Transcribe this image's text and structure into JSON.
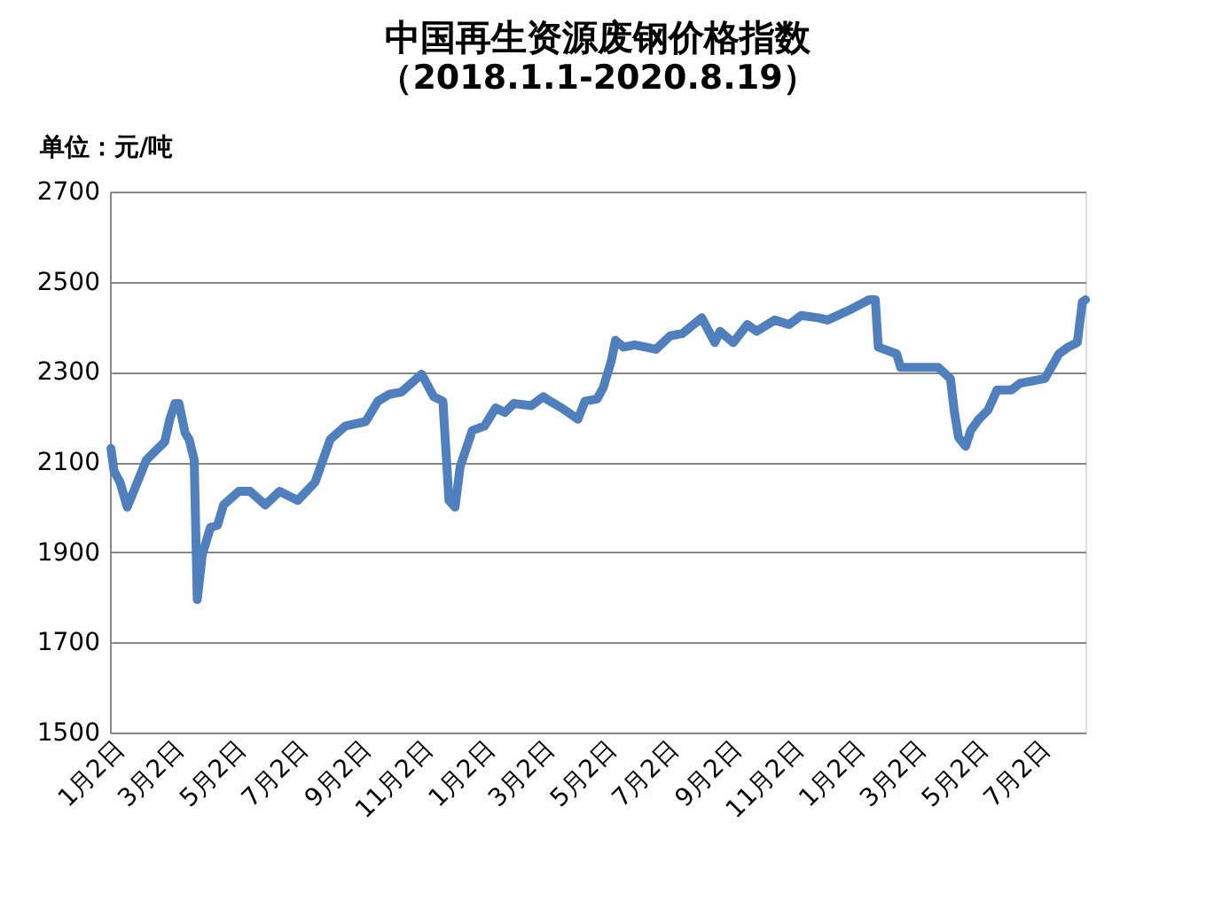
{
  "chart_data": {
    "type": "line",
    "title": "中国再生资源废钢价格指数",
    "subtitle": "（2018.1.1-2020.8.19）",
    "ylabel": "单位：元/吨",
    "x": [
      "2018-01-02",
      "2018-01-05",
      "2018-01-11",
      "2018-01-18",
      "2018-02-06",
      "2018-02-24",
      "2018-03-01",
      "2018-03-06",
      "2018-03-10",
      "2018-03-16",
      "2018-03-20",
      "2018-03-25",
      "2018-03-28",
      "2018-04-02",
      "2018-04-10",
      "2018-04-17",
      "2018-04-23",
      "2018-05-08",
      "2018-05-19",
      "2018-06-03",
      "2018-06-17",
      "2018-07-05",
      "2018-07-22",
      "2018-08-06",
      "2018-08-21",
      "2018-09-10",
      "2018-09-22",
      "2018-10-03",
      "2018-10-15",
      "2018-11-04",
      "2018-11-16",
      "2018-11-25",
      "2018-12-01",
      "2018-12-07",
      "2018-12-12",
      "2018-12-24",
      "2019-01-05",
      "2019-01-16",
      "2019-01-25",
      "2019-02-03",
      "2019-02-20",
      "2019-03-04",
      "2019-03-07",
      "2019-03-22",
      "2019-04-07",
      "2019-04-14",
      "2019-04-26",
      "2019-05-02",
      "2019-05-10",
      "2019-05-14",
      "2019-05-22",
      "2019-06-02",
      "2019-06-23",
      "2019-07-07",
      "2019-07-19",
      "2019-08-07",
      "2019-08-20",
      "2019-08-25",
      "2019-09-07",
      "2019-09-21",
      "2019-09-30",
      "2019-10-18",
      "2019-11-01",
      "2019-11-13",
      "2019-11-30",
      "2019-12-09",
      "2020-01-02",
      "2020-01-19",
      "2020-01-25",
      "2020-01-28",
      "2020-02-15",
      "2020-02-19",
      "2020-03-27",
      "2020-04-08",
      "2020-04-12",
      "2020-04-16",
      "2020-04-23",
      "2020-04-28",
      "2020-05-06",
      "2020-05-15",
      "2020-05-24",
      "2020-06-07",
      "2020-06-16",
      "2020-07-10",
      "2020-07-24",
      "2020-08-02",
      "2020-08-11",
      "2020-08-16",
      "2020-08-19"
    ],
    "series": [
      {
        "color": "#4f7fbd",
        "values": [
          2130,
          2080,
          2055,
          2000,
          2105,
          2145,
          2195,
          2230,
          2230,
          2165,
          2150,
          2105,
          1795,
          1895,
          1955,
          1960,
          2005,
          2035,
          2035,
          2005,
          2035,
          2015,
          2055,
          2150,
          2180,
          2190,
          2235,
          2250,
          2255,
          2295,
          2245,
          2235,
          2015,
          2000,
          2090,
          2170,
          2180,
          2220,
          2210,
          2230,
          2225,
          2245,
          2240,
          2220,
          2195,
          2235,
          2240,
          2265,
          2325,
          2370,
          2355,
          2360,
          2350,
          2380,
          2385,
          2420,
          2365,
          2390,
          2365,
          2405,
          2390,
          2415,
          2405,
          2425,
          2420,
          2415,
          2440,
          2460,
          2460,
          2355,
          2340,
          2310,
          2310,
          2285,
          2210,
          2155,
          2135,
          2170,
          2195,
          2215,
          2260,
          2260,
          2275,
          2285,
          2340,
          2355,
          2365,
          2455,
          2460
        ]
      }
    ],
    "xlim": [
      "2018-01-01",
      "2020-08-19"
    ],
    "xticks": [
      {
        "value": "2018-01-02",
        "label": "1月2日"
      },
      {
        "value": "2018-03-02",
        "label": "3月2日"
      },
      {
        "value": "2018-05-02",
        "label": "5月2日"
      },
      {
        "value": "2018-07-02",
        "label": "7月2日"
      },
      {
        "value": "2018-09-02",
        "label": "9月2日"
      },
      {
        "value": "2018-11-02",
        "label": "11月2日"
      },
      {
        "value": "2019-01-02",
        "label": "1月2日"
      },
      {
        "value": "2019-03-02",
        "label": "3月2日"
      },
      {
        "value": "2019-05-02",
        "label": "5月2日"
      },
      {
        "value": "2019-07-02",
        "label": "7月2日"
      },
      {
        "value": "2019-09-02",
        "label": "9月2日"
      },
      {
        "value": "2019-11-02",
        "label": "11月2日"
      },
      {
        "value": "2020-01-02",
        "label": "1月2日"
      },
      {
        "value": "2020-03-02",
        "label": "3月2日"
      },
      {
        "value": "2020-05-02",
        "label": "5月2日"
      },
      {
        "value": "2020-07-02",
        "label": "7月2日"
      }
    ],
    "ylim": [
      1500,
      2700
    ],
    "yticks": [
      1500,
      1700,
      1900,
      2100,
      2300,
      2500,
      2700
    ],
    "grid": "y",
    "marker": "none",
    "line_style": "solid"
  }
}
